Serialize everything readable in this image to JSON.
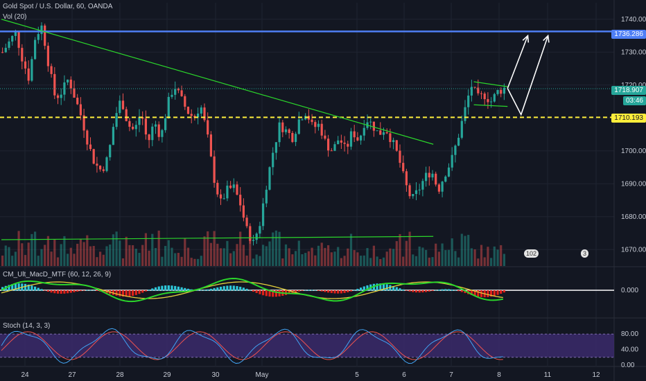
{
  "header": {
    "symbol_line": "Gold Spot / U.S. Dollar, 60, OANDA",
    "volume_label": "Vol (20)"
  },
  "colors": {
    "up": "#26a69a",
    "down": "#ef5350",
    "trend": "#2bd62b",
    "resistance": "#4f7ff5",
    "support": "#ffee3b",
    "bg": "#131722",
    "grid": "#1f2431"
  },
  "price_axis": {
    "min": 1665,
    "max": 1745,
    "ticks": [
      "1740.000",
      "1730.000",
      "1720.000",
      "1710.000",
      "1700.000",
      "1690.000",
      "1680.000",
      "1670.000"
    ],
    "tick_values": [
      1740,
      1730,
      1720,
      1710,
      1700,
      1690,
      1680,
      1670
    ]
  },
  "price_badges": {
    "resistance": {
      "value": 1736.286,
      "text": "1736.286",
      "color": "#4f7ff5"
    },
    "last": {
      "value": 1718.907,
      "text": "1718.907",
      "color": "#26a69a"
    },
    "countdown": {
      "text": "03:46",
      "color": "#26a69a"
    },
    "support": {
      "value": 1710.193,
      "text": "1710.193",
      "color": "#ffee3b"
    }
  },
  "x_axis": {
    "ticks": [
      "24",
      "27",
      "28",
      "29",
      "30",
      "May",
      "5",
      "6",
      "7",
      "8",
      "11",
      "12"
    ]
  },
  "events": [
    {
      "text": "102"
    },
    {
      "text": "3"
    }
  ],
  "macd": {
    "title": "CM_Ult_MacD_MTF (60, 12, 26, 9)",
    "ticks": [
      "0.000"
    ]
  },
  "stoch": {
    "title": "Stoch (14, 3, 3)",
    "ticks": [
      "80.00",
      "40.00",
      "0.00"
    ],
    "tick_values": [
      80,
      40,
      0
    ]
  },
  "chart_data": {
    "type": "candlestick",
    "price_axis": {
      "min": 1665,
      "max": 1745
    },
    "levels": {
      "resistance": 1736.286,
      "support": 1710.193,
      "last": 1718.907
    },
    "path": [
      1730,
      1733,
      1736,
      1728,
      1722,
      1735,
      1738,
      1726,
      1716,
      1718,
      1722,
      1716,
      1710,
      1702,
      1696,
      1694,
      1698,
      1710,
      1716,
      1708,
      1706,
      1712,
      1702,
      1709,
      1704,
      1714,
      1720,
      1716,
      1712,
      1710,
      1714,
      1705,
      1692,
      1684,
      1688,
      1689,
      1684,
      1676,
      1672,
      1678,
      1690,
      1700,
      1708,
      1706,
      1704,
      1710,
      1712,
      1707,
      1708,
      1702,
      1700,
      1704,
      1700,
      1706,
      1703,
      1710,
      1708,
      1705,
      1707,
      1703,
      1698,
      1690,
      1685,
      1688,
      1692,
      1694,
      1688,
      1693,
      1697,
      1704,
      1712,
      1720,
      1716,
      1717,
      1715,
      1718,
      1719
    ],
    "trendlines": [
      {
        "name": "upper-downtrend",
        "points": [
          [
            0,
            1740
          ],
          [
            64,
            1702
          ]
        ]
      },
      {
        "name": "lower-support",
        "points": [
          [
            0,
            1673
          ],
          [
            64,
            1674
          ]
        ]
      },
      {
        "name": "flag-top",
        "points": [
          [
            70,
            1721
          ],
          [
            75,
            1719.5
          ]
        ]
      },
      {
        "name": "flag-bottom",
        "points": [
          [
            70,
            1714
          ],
          [
            75,
            1713.5
          ]
        ]
      }
    ],
    "projections": [
      {
        "points": [
          [
            75,
            1719
          ],
          [
            78,
            1735
          ]
        ]
      },
      {
        "points": [
          [
            75,
            1719
          ],
          [
            77,
            1711
          ],
          [
            81,
            1735
          ]
        ]
      }
    ]
  }
}
